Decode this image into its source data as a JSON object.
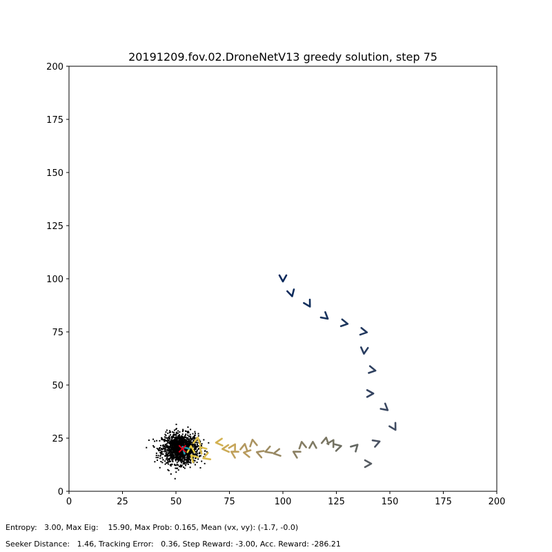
{
  "chart_data": {
    "type": "scatter",
    "title": "20191209.fov.02.DroneNetV13 greedy solution, step 75",
    "xlim": [
      0,
      200
    ],
    "ylim": [
      0,
      200
    ],
    "xticks": [
      "0",
      "25",
      "50",
      "75",
      "100",
      "125",
      "150",
      "175",
      "200"
    ],
    "yticks": [
      "0",
      "25",
      "50",
      "75",
      "100",
      "125",
      "150",
      "175",
      "200"
    ],
    "grid": false,
    "particle_cloud": {
      "center": [
        52,
        20
      ],
      "spread": [
        4.2,
        3.5
      ],
      "color": "#000000",
      "approx_count": 1500
    },
    "trajectory_markers": [
      {
        "x": 100,
        "y": 100,
        "heading": -90,
        "color": "#0b2a5c"
      },
      {
        "x": 104,
        "y": 93,
        "heading": -75,
        "color": "#0e2c5c"
      },
      {
        "x": 112,
        "y": 88,
        "heading": -60,
        "color": "#13305d"
      },
      {
        "x": 120,
        "y": 82,
        "heading": -40,
        "color": "#18345e"
      },
      {
        "x": 129,
        "y": 79,
        "heading": -10,
        "color": "#1d375e"
      },
      {
        "x": 138,
        "y": 75,
        "heading": -10,
        "color": "#23395f"
      },
      {
        "x": 138,
        "y": 66,
        "heading": -95,
        "color": "#293d60"
      },
      {
        "x": 142,
        "y": 57,
        "heading": -10,
        "color": "#2f4160"
      },
      {
        "x": 141,
        "y": 46,
        "heading": 0,
        "color": "#354461"
      },
      {
        "x": 148,
        "y": 39,
        "heading": -40,
        "color": "#3a4861"
      },
      {
        "x": 152,
        "y": 30,
        "heading": -60,
        "color": "#404c62"
      },
      {
        "x": 144,
        "y": 23,
        "heading": 20,
        "color": "#4a5262"
      },
      {
        "x": 140,
        "y": 13,
        "heading": 0,
        "color": "#575c62"
      },
      {
        "x": 134,
        "y": 21,
        "heading": 45,
        "color": "#646762"
      },
      {
        "x": 126,
        "y": 21,
        "heading": 15,
        "color": "#6f6f62"
      },
      {
        "x": 123,
        "y": 23,
        "heading": 60,
        "color": "#767463"
      },
      {
        "x": 120,
        "y": 24,
        "heading": 80,
        "color": "#7a7663"
      },
      {
        "x": 114,
        "y": 22,
        "heading": 90,
        "color": "#7f7a64"
      },
      {
        "x": 109,
        "y": 22,
        "heading": 100,
        "color": "#857d64"
      },
      {
        "x": 106,
        "y": 18,
        "heading": 150,
        "color": "#8c8164"
      },
      {
        "x": 97,
        "y": 18,
        "heading": 190,
        "color": "#978864"
      },
      {
        "x": 93,
        "y": 19,
        "heading": 200,
        "color": "#9d8c63"
      },
      {
        "x": 89,
        "y": 18,
        "heading": 160,
        "color": "#a48f62"
      },
      {
        "x": 86,
        "y": 23,
        "heading": 100,
        "color": "#ab9461"
      },
      {
        "x": 82,
        "y": 21,
        "heading": 80,
        "color": "#b39860"
      },
      {
        "x": 83,
        "y": 18,
        "heading": 170,
        "color": "#b89b5e"
      },
      {
        "x": 77,
        "y": 18,
        "heading": 150,
        "color": "#bfa05c"
      },
      {
        "x": 77,
        "y": 21,
        "heading": 60,
        "color": "#c6a55a"
      },
      {
        "x": 73,
        "y": 20,
        "heading": 185,
        "color": "#ccab56"
      },
      {
        "x": 70,
        "y": 23,
        "heading": 185,
        "color": "#d3b252"
      },
      {
        "x": 64,
        "y": 16,
        "heading": 200,
        "color": "#d9b94d"
      },
      {
        "x": 62,
        "y": 20,
        "heading": 135,
        "color": "#dcbd4a"
      },
      {
        "x": 60,
        "y": 24,
        "heading": 80,
        "color": "#dfc147"
      },
      {
        "x": 58,
        "y": 16,
        "heading": 135,
        "color": "#e2c543"
      },
      {
        "x": 57,
        "y": 20,
        "heading": 90,
        "color": "#e6ca3e"
      }
    ],
    "seeker_marker": {
      "x": 54,
      "y": 20,
      "heading": 135,
      "color": "#1f9ab0"
    },
    "target_marker": {
      "x": 53,
      "y": 20,
      "symbol": "x",
      "color": "#e0001b"
    }
  },
  "footer": {
    "line1": "Entropy:   3.00, Max Eig:    15.90, Max Prob: 0.165, Mean (vx, vy): (-1.7, -0.0)",
    "line2": "Seeker Distance:   1.46, Tracking Error:   0.36, Step Reward: -3.00, Acc. Reward: -286.21"
  }
}
